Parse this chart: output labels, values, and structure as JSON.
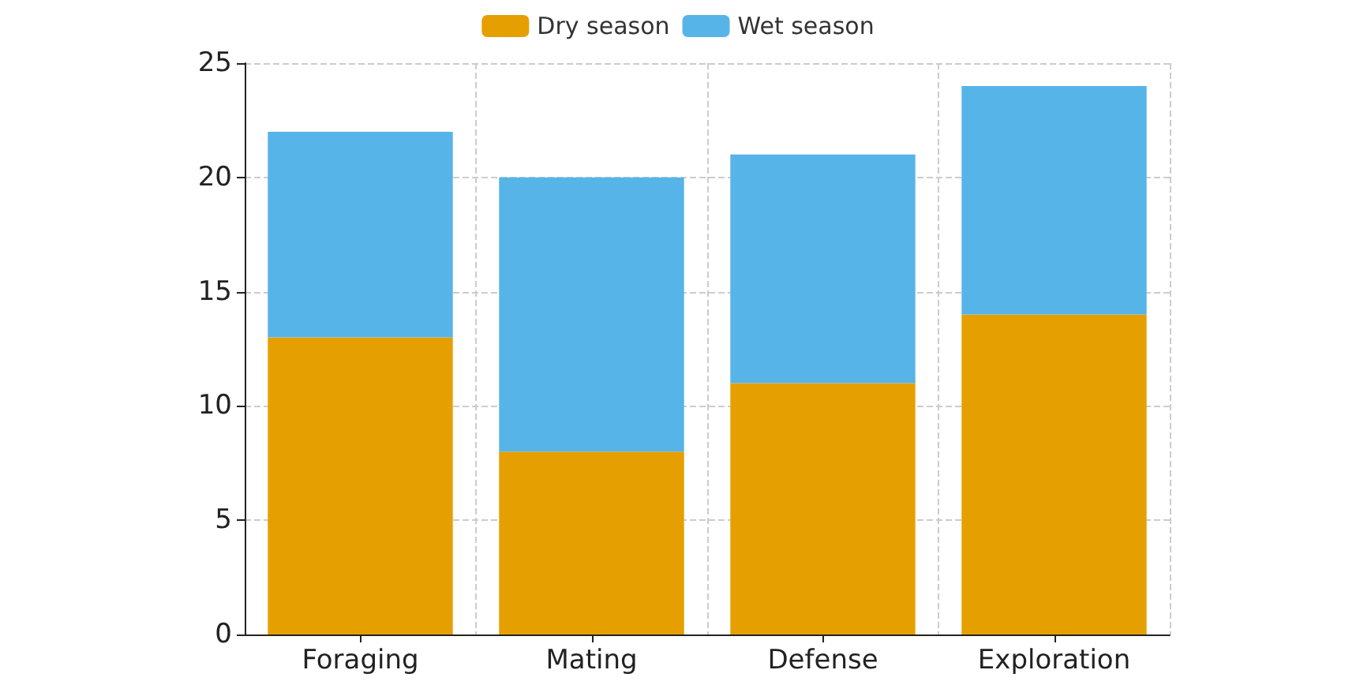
{
  "chart_data": {
    "type": "bar",
    "stacked": true,
    "categories": [
      "Foraging",
      "Mating",
      "Defense",
      "Exploration"
    ],
    "series": [
      {
        "name": "Dry season",
        "color": "#e69f00",
        "values": [
          13,
          8,
          11,
          14
        ]
      },
      {
        "name": "Wet season",
        "color": "#56b4e9",
        "values": [
          9,
          12,
          10,
          10
        ]
      }
    ],
    "ylim": [
      0,
      25
    ],
    "yticks": [
      0,
      5,
      10,
      15,
      20,
      25
    ],
    "grid": true,
    "legend": "top"
  }
}
